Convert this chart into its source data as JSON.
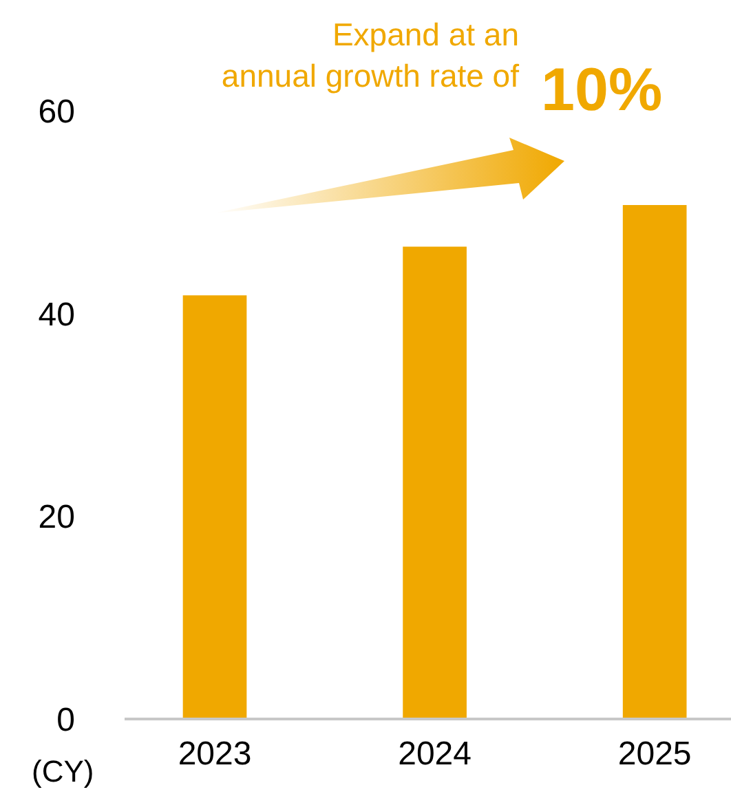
{
  "chart_data": {
    "type": "bar",
    "categories": [
      "2023",
      "2024",
      "2025"
    ],
    "values": [
      41.8,
      46.6,
      50.7
    ],
    "color": "#f0a800",
    "xlabel": "(CY)",
    "ylim": [
      0,
      60
    ],
    "yticks": [
      0,
      20,
      40,
      60
    ],
    "grid": false,
    "annotations": [
      "Expand at an\nannual growth rate of",
      "10%"
    ]
  }
}
